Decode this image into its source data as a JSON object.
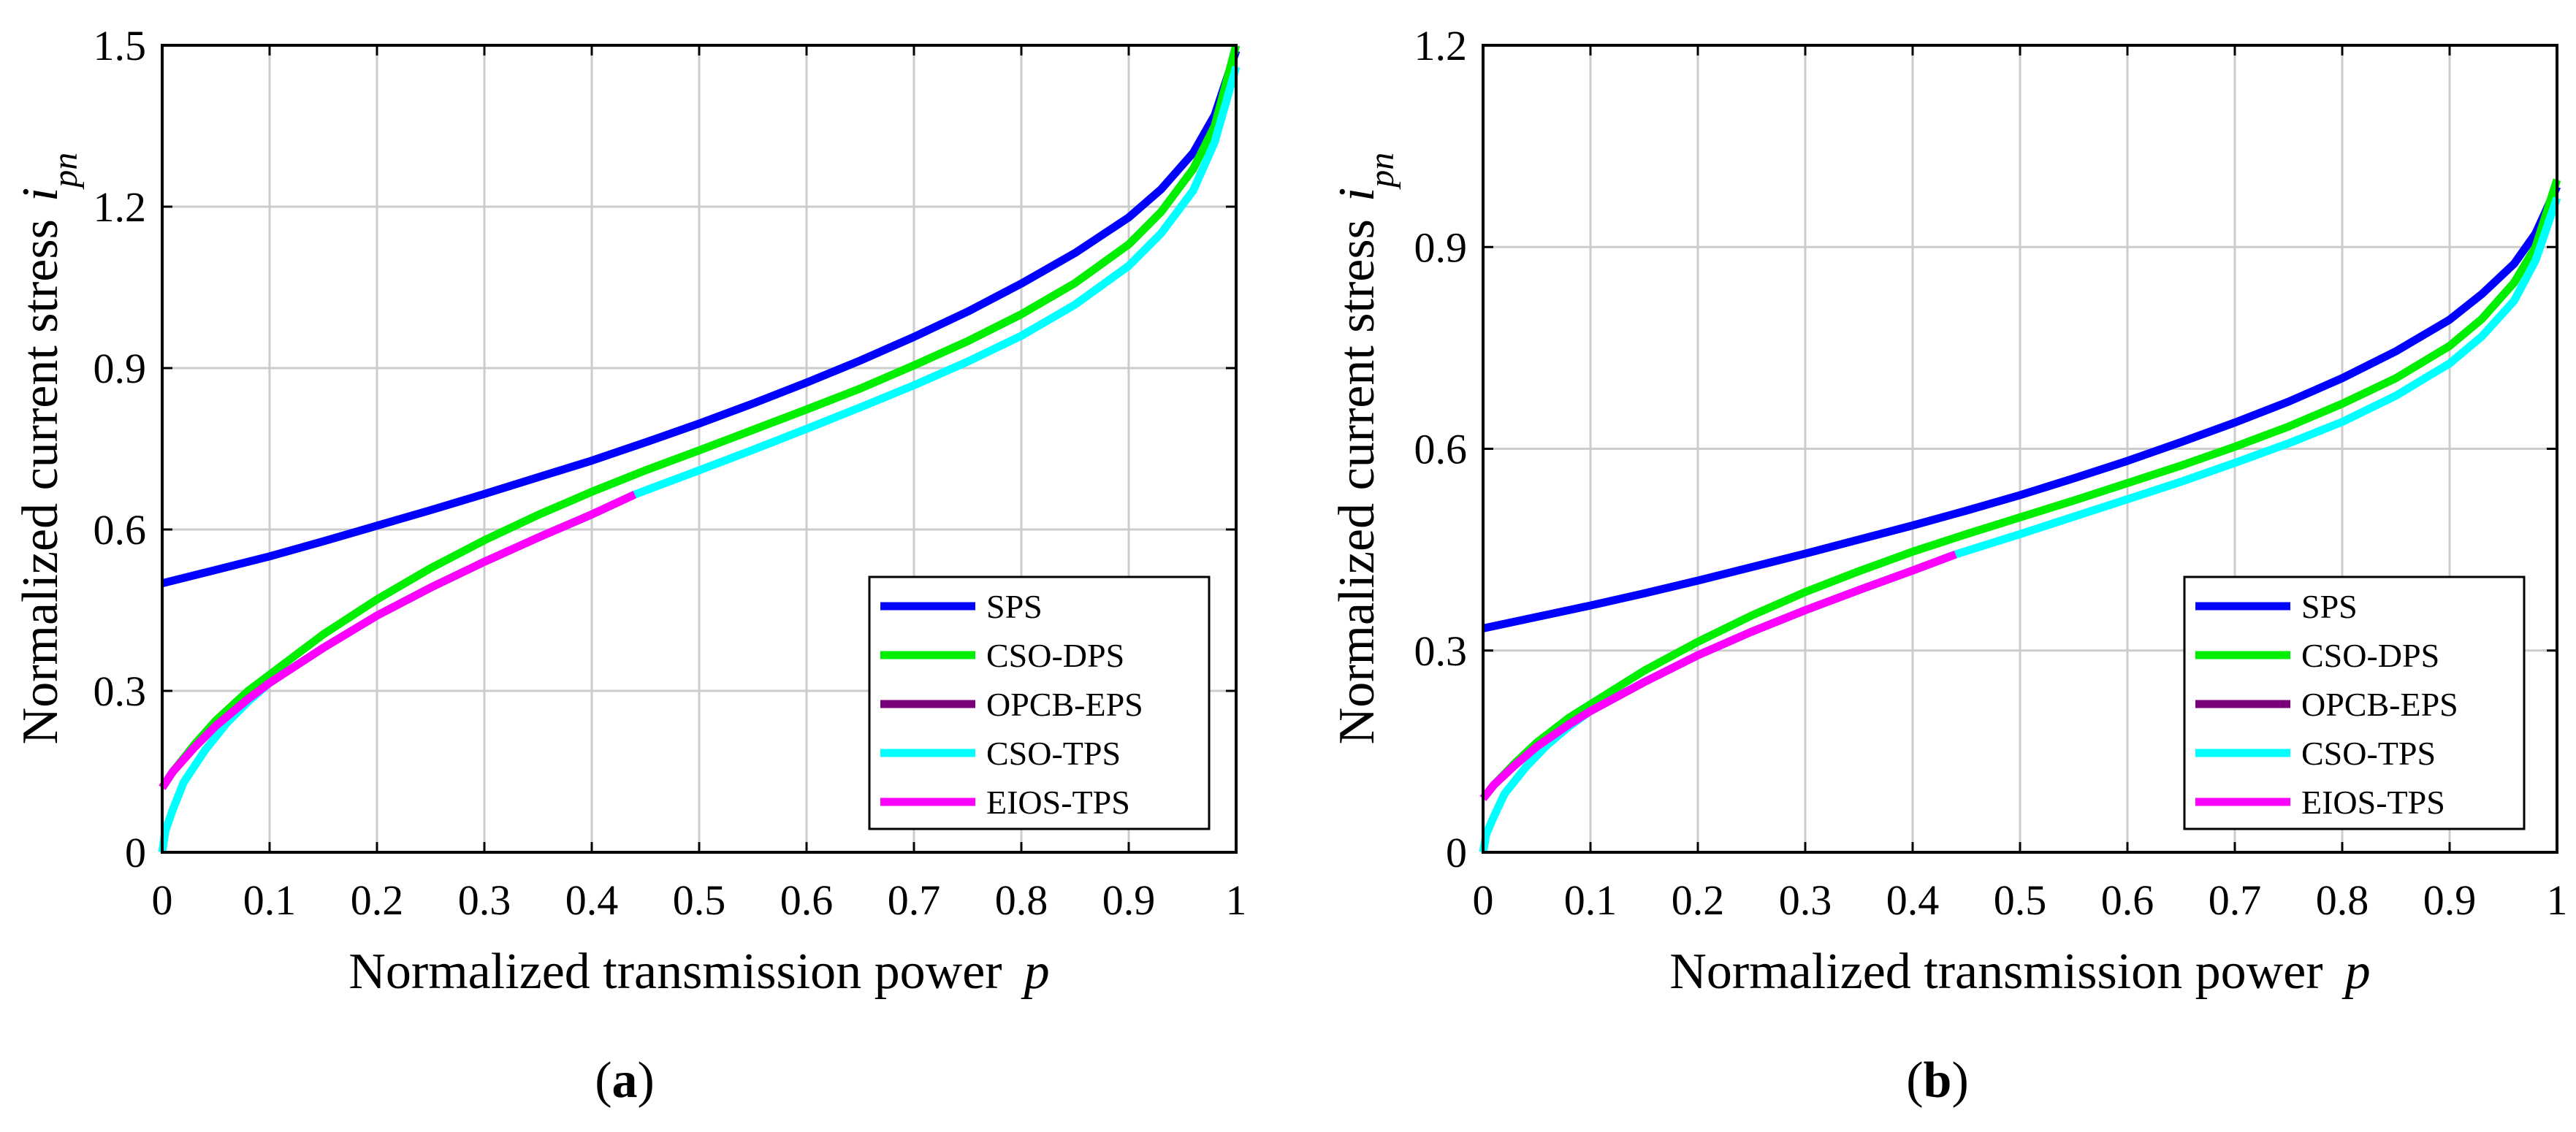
{
  "chart_data": [
    {
      "type": "line",
      "panel_label": "a",
      "xlabel": "Normalized transmission power",
      "xlabel_var": "p",
      "ylabel": "Normalized current stress",
      "ylabel_var": "i",
      "ylabel_sub": "pn",
      "xlim": [
        0,
        1
      ],
      "ylim": [
        0,
        1.5
      ],
      "xticks": [
        0,
        0.1,
        0.2,
        0.3,
        0.4,
        0.5,
        0.6,
        0.7,
        0.8,
        0.9,
        1
      ],
      "xtick_labels": [
        "0",
        "0.1",
        "0.2",
        "0.3",
        "0.4",
        "0.5",
        "0.6",
        "0.7",
        "0.8",
        "0.9",
        "1"
      ],
      "yticks": [
        0,
        0.3,
        0.6,
        0.9,
        1.2,
        1.5
      ],
      "ytick_labels": [
        "0",
        "0.3",
        "0.6",
        "0.9",
        "1.2",
        "1.5"
      ],
      "grid": true,
      "legend_position": "lower-right",
      "series": [
        {
          "name": "SPS",
          "color": "#0000ff",
          "x": [
            0,
            0.05,
            0.1,
            0.15,
            0.2,
            0.25,
            0.3,
            0.35,
            0.4,
            0.45,
            0.5,
            0.55,
            0.6,
            0.65,
            0.7,
            0.75,
            0.8,
            0.85,
            0.9,
            0.93,
            0.96,
            0.98,
            1.0
          ],
          "y": [
            0.5,
            0.525,
            0.55,
            0.578,
            0.607,
            0.636,
            0.666,
            0.697,
            0.728,
            0.762,
            0.797,
            0.834,
            0.873,
            0.914,
            0.958,
            1.005,
            1.057,
            1.114,
            1.18,
            1.232,
            1.3,
            1.37,
            1.49
          ]
        },
        {
          "name": "CSO-DPS",
          "color": "#00ee00",
          "x": [
            0,
            0.01,
            0.03,
            0.05,
            0.08,
            0.1,
            0.15,
            0.2,
            0.25,
            0.3,
            0.35,
            0.4,
            0.45,
            0.5,
            0.55,
            0.6,
            0.65,
            0.7,
            0.75,
            0.8,
            0.85,
            0.9,
            0.93,
            0.96,
            0.98,
            1.0
          ],
          "y": [
            0.12,
            0.15,
            0.2,
            0.245,
            0.3,
            0.33,
            0.405,
            0.47,
            0.528,
            0.58,
            0.627,
            0.67,
            0.71,
            0.747,
            0.785,
            0.823,
            0.862,
            0.905,
            0.95,
            1.0,
            1.058,
            1.13,
            1.19,
            1.27,
            1.35,
            1.5
          ]
        },
        {
          "name": "OPCB-EPS",
          "color": "#7a007a",
          "x": [
            0,
            0.01,
            0.03,
            0.05,
            0.08,
            0.1,
            0.15,
            0.2,
            0.25,
            0.3,
            0.35,
            0.4,
            0.44
          ],
          "y": [
            0.12,
            0.15,
            0.195,
            0.235,
            0.285,
            0.315,
            0.38,
            0.44,
            0.492,
            0.54,
            0.585,
            0.628,
            0.665
          ]
        },
        {
          "name": "CSO-TPS",
          "color": "#00ffff",
          "x": [
            0,
            0.003,
            0.01,
            0.02,
            0.04,
            0.06,
            0.08,
            0.1,
            0.15,
            0.2,
            0.25,
            0.3,
            0.35,
            0.4,
            0.44,
            0.5,
            0.55,
            0.6,
            0.65,
            0.7,
            0.75,
            0.8,
            0.85,
            0.9,
            0.93,
            0.96,
            0.98,
            1.0
          ],
          "y": [
            0.0,
            0.04,
            0.08,
            0.13,
            0.19,
            0.24,
            0.28,
            0.315,
            0.38,
            0.44,
            0.492,
            0.54,
            0.585,
            0.628,
            0.665,
            0.71,
            0.748,
            0.787,
            0.827,
            0.868,
            0.912,
            0.96,
            1.018,
            1.09,
            1.15,
            1.23,
            1.32,
            1.46
          ]
        },
        {
          "name": "EIOS-TPS",
          "color": "#ff00ff",
          "x": [
            0,
            0.01,
            0.03,
            0.05,
            0.08,
            0.1,
            0.15,
            0.2,
            0.25,
            0.3,
            0.35,
            0.4,
            0.44
          ],
          "y": [
            0.12,
            0.15,
            0.195,
            0.235,
            0.285,
            0.315,
            0.38,
            0.44,
            0.492,
            0.54,
            0.585,
            0.628,
            0.665
          ]
        }
      ]
    },
    {
      "type": "line",
      "panel_label": "b",
      "xlabel": "Normalized transmission power",
      "xlabel_var": "p",
      "ylabel": "Normalized current stress",
      "ylabel_var": "i",
      "ylabel_sub": "pn",
      "xlim": [
        0,
        1
      ],
      "ylim": [
        0,
        1.2
      ],
      "xticks": [
        0,
        0.1,
        0.2,
        0.3,
        0.4,
        0.5,
        0.6,
        0.7,
        0.8,
        0.9,
        1
      ],
      "xtick_labels": [
        "0",
        "0.1",
        "0.2",
        "0.3",
        "0.4",
        "0.5",
        "0.6",
        "0.7",
        "0.8",
        "0.9",
        "1"
      ],
      "yticks": [
        0,
        0.3,
        0.6,
        0.9,
        1.2
      ],
      "ytick_labels": [
        "0",
        "0.3",
        "0.6",
        "0.9",
        "1.2"
      ],
      "grid": true,
      "legend_position": "lower-right",
      "series": [
        {
          "name": "SPS",
          "color": "#0000ff",
          "x": [
            0,
            0.05,
            0.1,
            0.15,
            0.2,
            0.25,
            0.3,
            0.35,
            0.4,
            0.45,
            0.5,
            0.55,
            0.6,
            0.65,
            0.7,
            0.75,
            0.8,
            0.85,
            0.9,
            0.93,
            0.96,
            0.98,
            1.0
          ],
          "y": [
            0.333,
            0.35,
            0.367,
            0.385,
            0.404,
            0.424,
            0.444,
            0.465,
            0.486,
            0.508,
            0.531,
            0.556,
            0.582,
            0.61,
            0.639,
            0.67,
            0.705,
            0.745,
            0.792,
            0.83,
            0.875,
            0.92,
            0.99
          ]
        },
        {
          "name": "CSO-DPS",
          "color": "#00ee00",
          "x": [
            0,
            0.01,
            0.03,
            0.05,
            0.08,
            0.1,
            0.15,
            0.2,
            0.25,
            0.3,
            0.35,
            0.4,
            0.45,
            0.5,
            0.55,
            0.6,
            0.65,
            0.7,
            0.75,
            0.8,
            0.85,
            0.9,
            0.93,
            0.96,
            0.98,
            1.0
          ],
          "y": [
            0.08,
            0.1,
            0.133,
            0.163,
            0.2,
            0.22,
            0.27,
            0.313,
            0.352,
            0.387,
            0.418,
            0.447,
            0.473,
            0.498,
            0.523,
            0.549,
            0.575,
            0.603,
            0.633,
            0.667,
            0.705,
            0.753,
            0.793,
            0.847,
            0.9,
            1.0
          ]
        },
        {
          "name": "OPCB-EPS",
          "color": "#7a007a",
          "x": [
            0,
            0.01,
            0.03,
            0.05,
            0.08,
            0.1,
            0.15,
            0.2,
            0.25,
            0.3,
            0.35,
            0.4,
            0.44
          ],
          "y": [
            0.08,
            0.1,
            0.13,
            0.157,
            0.19,
            0.21,
            0.253,
            0.293,
            0.328,
            0.36,
            0.39,
            0.419,
            0.443
          ]
        },
        {
          "name": "CSO-TPS",
          "color": "#00ffff",
          "x": [
            0,
            0.003,
            0.01,
            0.02,
            0.04,
            0.06,
            0.08,
            0.1,
            0.15,
            0.2,
            0.25,
            0.3,
            0.35,
            0.4,
            0.44,
            0.5,
            0.55,
            0.6,
            0.65,
            0.7,
            0.75,
            0.8,
            0.85,
            0.9,
            0.93,
            0.96,
            0.98,
            1.0
          ],
          "y": [
            0.0,
            0.027,
            0.053,
            0.087,
            0.127,
            0.16,
            0.187,
            0.21,
            0.253,
            0.293,
            0.328,
            0.36,
            0.39,
            0.419,
            0.443,
            0.473,
            0.499,
            0.525,
            0.551,
            0.579,
            0.608,
            0.64,
            0.679,
            0.727,
            0.767,
            0.82,
            0.88,
            0.973
          ]
        },
        {
          "name": "EIOS-TPS",
          "color": "#ff00ff",
          "x": [
            0,
            0.01,
            0.03,
            0.05,
            0.08,
            0.1,
            0.15,
            0.2,
            0.25,
            0.3,
            0.35,
            0.4,
            0.44
          ],
          "y": [
            0.08,
            0.1,
            0.13,
            0.157,
            0.19,
            0.21,
            0.253,
            0.293,
            0.328,
            0.36,
            0.39,
            0.419,
            0.443
          ]
        }
      ]
    }
  ]
}
